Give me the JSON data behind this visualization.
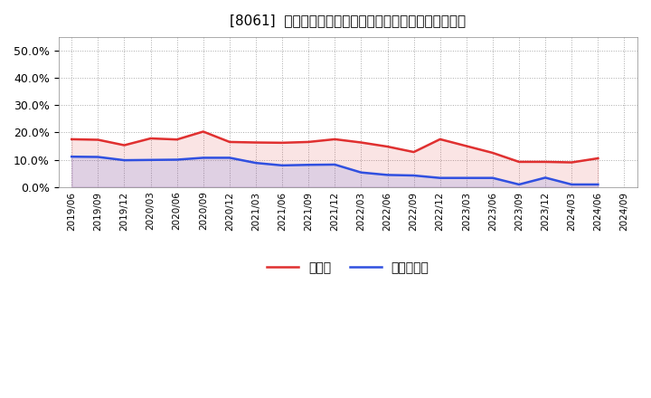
{
  "title": "[8061]  現頲金、有利子負債の総資産に対する比率の推移",
  "x_labels": [
    "2019/06",
    "2019/09",
    "2019/12",
    "2020/03",
    "2020/06",
    "2020/09",
    "2020/12",
    "2021/03",
    "2021/06",
    "2021/09",
    "2021/12",
    "2022/03",
    "2022/06",
    "2022/09",
    "2022/12",
    "2023/03",
    "2023/06",
    "2023/09",
    "2023/12",
    "2024/03",
    "2024/06",
    "2024/09"
  ],
  "cash": [
    0.175,
    0.173,
    0.153,
    0.178,
    0.174,
    0.203,
    0.165,
    0.163,
    0.162,
    0.165,
    0.175,
    0.163,
    0.148,
    0.128,
    0.175,
    0.15,
    0.125,
    0.092,
    0.092,
    0.09,
    0.105,
    null
  ],
  "debt": [
    0.111,
    0.11,
    0.098,
    0.099,
    0.1,
    0.107,
    0.107,
    0.088,
    0.079,
    0.081,
    0.082,
    0.053,
    0.044,
    0.042,
    0.033,
    0.033,
    0.033,
    0.009,
    0.034,
    0.009,
    0.009,
    null
  ],
  "cash_color": "#e03030",
  "debt_color": "#3050e0",
  "background_color": "#ffffff",
  "grid_color": "#aaaaaa",
  "legend_cash": "現頲金",
  "legend_debt": "有利子負債",
  "ylim": [
    0.0,
    0.55
  ],
  "yticks": [
    0.0,
    0.1,
    0.2,
    0.3,
    0.4,
    0.5
  ]
}
